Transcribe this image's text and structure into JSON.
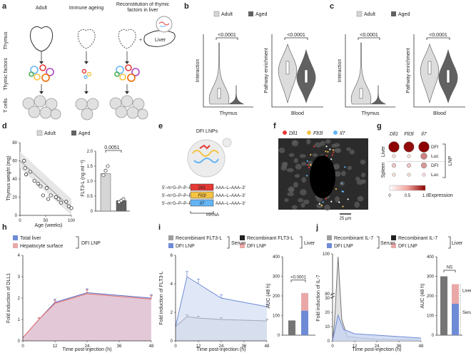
{
  "panel_letters": [
    "a",
    "b",
    "c",
    "d",
    "e",
    "f",
    "g",
    "h",
    "i",
    "j"
  ],
  "panel_a": {
    "columns": [
      "Adult",
      "Immune ageing",
      "Reconstitution of thymic factors in liver"
    ],
    "rows": [
      "Thymus",
      "Thymic factors",
      "T cells"
    ],
    "liver_label": "Liver",
    "plus": "+"
  },
  "panel_b": {
    "legend": [
      "Adult",
      "Aged"
    ],
    "pvalues": [
      "<0.0001",
      "<0.0001"
    ],
    "ylabels": [
      "Interaction",
      "Pathway enrichment"
    ],
    "xlabels": [
      "Thymus",
      "Blood"
    ]
  },
  "panel_c": {
    "legend": [
      "Adult",
      "Aged"
    ],
    "pvalues": [
      "<0.0001",
      "<0.0001"
    ],
    "ylabels": [
      "Interaction",
      "Pathway enrichment"
    ],
    "xlabels": [
      "Thymus",
      "Blood"
    ]
  },
  "panel_d": {
    "legend": [
      "Adult",
      "Aged"
    ],
    "scatter": {
      "ylabel": "Thymus weight (mg)",
      "xlabel": "Age (weeks)",
      "yticks": [
        "0",
        "20",
        "40",
        "60",
        "80"
      ],
      "xticks": [
        "0",
        "50",
        "100"
      ],
      "ylim": [
        0,
        80
      ],
      "xlim": [
        0,
        100
      ],
      "points": [
        [
          8,
          60
        ],
        [
          10,
          52
        ],
        [
          12,
          45
        ],
        [
          20,
          48
        ],
        [
          28,
          38
        ],
        [
          35,
          35
        ],
        [
          40,
          32
        ],
        [
          45,
          22
        ],
        [
          52,
          30
        ],
        [
          55,
          18
        ],
        [
          60,
          22
        ],
        [
          70,
          20
        ],
        [
          75,
          18
        ],
        [
          80,
          14
        ],
        [
          90,
          15
        ],
        [
          95,
          10
        ],
        [
          100,
          8
        ]
      ]
    },
    "bar": {
      "ylabel": "FLT3-L (ng ml⁻¹)",
      "yticks": [
        "0",
        "0.5",
        "1.0",
        "1.5",
        "2.0"
      ],
      "ylim": [
        0,
        2.0
      ],
      "pvalue": "0.0051",
      "values": [
        1.25,
        0.35
      ],
      "points": [
        [
          1.2,
          1.35,
          1.5
        ],
        [
          0.3,
          0.35,
          0.4
        ]
      ]
    }
  },
  "panel_e": {
    "title": "DFI LNPs",
    "constructs": [
      {
        "prefix": "5′–m⁷G–P–P–P",
        "gene": "Dll1",
        "suffix": "AAA–L–AAA–3′",
        "color": "#e53935"
      },
      {
        "prefix": "5′–m⁷G–P–P–P",
        "gene": "Flt3l",
        "suffix": "AAA–L–AAA–3′",
        "color": "#f6c343"
      },
      {
        "prefix": "5′–m⁷G–P–P–P",
        "gene": "Il7",
        "suffix": "AAA–L–AAA–3′",
        "color": "#64b5f6"
      }
    ],
    "mrna_label": "mRNA"
  },
  "panel_f": {
    "legend": [
      {
        "label": "Dll1",
        "color": "#e53935"
      },
      {
        "label": "Flt3l",
        "color": "#f6c343"
      },
      {
        "label": "Il7",
        "color": "#64b5f6"
      }
    ],
    "scale": "25 µm"
  },
  "panel_g": {
    "columns": [
      "Dll1",
      "Flt3l",
      "Il7"
    ],
    "groups": [
      "Liver",
      "Spleen"
    ],
    "rows": [
      "DFI",
      "Luc",
      "DFI",
      "Luc"
    ],
    "side_label": "LNP",
    "values": [
      [
        1.0,
        0.95,
        1.0
      ],
      [
        0.05,
        0.05,
        0.45
      ],
      [
        0.15,
        0.15,
        0.35
      ],
      [
        0.05,
        0.05,
        0.05
      ]
    ],
    "colorbar_label": "Expression",
    "colorbar_ticks": [
      "0",
      "0.5",
      "1.0"
    ]
  },
  "panel_h": {
    "legend": [
      "Total liver",
      "Hepatocyte surface"
    ],
    "legend_group": "DFI LNP",
    "ylabel": "Fold induction of DLL1",
    "xlabel": "Time post-injection (h)",
    "xticks": [
      "0",
      "12",
      "24",
      "36",
      "48"
    ],
    "yticks": [
      "0",
      "1",
      "2",
      "3",
      "4"
    ],
    "x": [
      0,
      6,
      12,
      24,
      48
    ],
    "series": [
      {
        "name": "Total liver",
        "values": [
          0.15,
          1.0,
          1.8,
          2.25,
          2.0
        ]
      },
      {
        "name": "Hepatocyte surface",
        "values": [
          0.15,
          1.0,
          1.75,
          2.2,
          1.95
        ]
      }
    ]
  },
  "panel_i": {
    "legend": [
      "Recombinant FLT3-L",
      "DFI LNP",
      "Recombinant FLT3-L",
      "DFI LNP"
    ],
    "groups": [
      "Serum",
      "Liver"
    ],
    "ylabel": "Fold induction of FLT3-L",
    "xlabel": "Time post-injection (h)",
    "xticks": [
      "0",
      "12",
      "24",
      "36",
      "48"
    ],
    "yticks": [
      "0",
      "2",
      "4",
      "6"
    ],
    "x": [
      0,
      6,
      12,
      24,
      48
    ],
    "series": [
      {
        "name": "Recombinant FLT3-L",
        "values": [
          1.0,
          1.7,
          1.6,
          1.5,
          1.4
        ]
      },
      {
        "name": "DFI LNP",
        "values": [
          1.0,
          4.5,
          4.0,
          3.0,
          2.4
        ]
      }
    ],
    "auc": {
      "ylabel": "AUC (48 h)",
      "yticks": [
        "0",
        "100",
        "200",
        "300",
        "400"
      ],
      "pvalue": "<0.0001",
      "values": [
        75,
        125,
        215
      ]
    }
  },
  "panel_j": {
    "legend": [
      "Recombinant IL-7",
      "DFI LNP",
      "Recombinant IL-7",
      "DFI LNP"
    ],
    "groups": [
      "Serum",
      "Liver"
    ],
    "ylabel": "Fold induction of IL-7",
    "xlabel": "Time post-injection (h)",
    "xticks": [
      "0",
      "12",
      "24",
      "36",
      "48"
    ],
    "yticks": [
      "0",
      "10",
      "20",
      "30",
      "80",
      "100"
    ],
    "auc": {
      "ylabel": "AUC (48 h)",
      "yticks": [
        "0",
        "100",
        "200",
        "300",
        "400"
      ],
      "pvalue": "NS",
      "side_labels": [
        "Liver",
        "Serum"
      ],
      "values": [
        300,
        160,
        260
      ]
    }
  }
}
